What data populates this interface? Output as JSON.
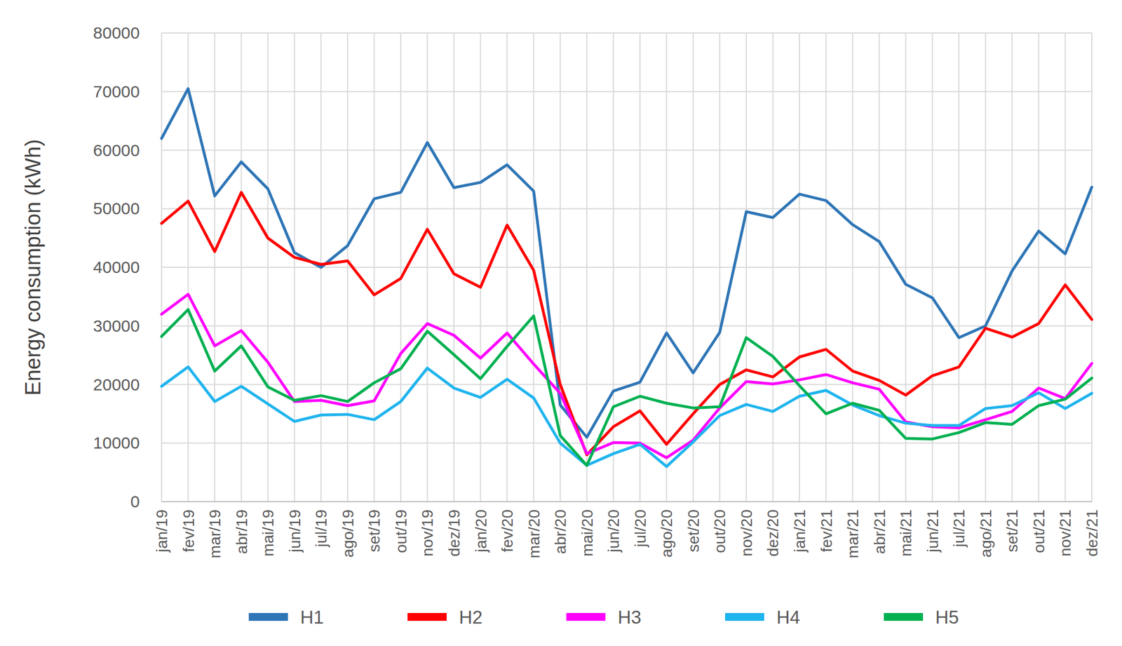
{
  "chart_data": {
    "type": "line",
    "y_label": "Energy consumption (kWh)",
    "categories": [
      "jan/19",
      "fev/19",
      "mar/19",
      "abr/19",
      "mai/19",
      "jun/19",
      "jul/19",
      "ago/19",
      "set/19",
      "out/19",
      "nov/19",
      "dez/19",
      "jan/20",
      "fev/20",
      "mar/20",
      "abr/20",
      "mai/20",
      "jun/20",
      "jul/20",
      "ago/20",
      "set/20",
      "out/20",
      "nov/20",
      "dez/20",
      "jan/21",
      "fev/21",
      "mar/21",
      "abr/21",
      "mai/21",
      "jun/21",
      "jul/21",
      "ago/21",
      "set/21",
      "out/21",
      "nov/21",
      "dez/21"
    ],
    "series": [
      {
        "name": "H1",
        "color": "#2e75b6",
        "values": [
          62000,
          70500,
          52200,
          58000,
          53400,
          42500,
          40000,
          43700,
          51700,
          52800,
          61300,
          53600,
          54500,
          57500,
          53000,
          16500,
          11000,
          18900,
          20400,
          28800,
          22000,
          28900,
          49500,
          48500,
          52500,
          51400,
          47300,
          44400,
          37100,
          34800,
          28000,
          30000,
          39400,
          46200,
          42300,
          53700
        ]
      },
      {
        "name": "H2",
        "color": "#ff0000",
        "values": [
          47500,
          51300,
          42700,
          52800,
          45000,
          41700,
          40500,
          41100,
          35300,
          38100,
          46500,
          38900,
          36600,
          47200,
          39500,
          20000,
          8000,
          12800,
          15500,
          9800,
          15000,
          20000,
          22500,
          21300,
          24700,
          26000,
          22300,
          20700,
          18200,
          21500,
          23000,
          29600,
          28100,
          30400,
          37000,
          31100
        ]
      },
      {
        "name": "H3",
        "color": "#ff00ff",
        "values": [
          32000,
          35400,
          26600,
          29200,
          23800,
          17100,
          17300,
          16400,
          17200,
          25300,
          30400,
          28400,
          24500,
          28800,
          23500,
          18500,
          8200,
          10100,
          10000,
          7500,
          10500,
          16000,
          20500,
          20100,
          20800,
          21700,
          20300,
          19200,
          13600,
          12800,
          12600,
          14000,
          15400,
          19400,
          17600,
          23600
        ]
      },
      {
        "name": "H4",
        "color": "#1fb4ee",
        "values": [
          19700,
          23000,
          17100,
          19700,
          16700,
          13700,
          14800,
          14900,
          14000,
          17100,
          22800,
          19400,
          17800,
          20900,
          17700,
          10000,
          6200,
          8200,
          9800,
          6000,
          10200,
          14700,
          16600,
          15400,
          18000,
          19000,
          16500,
          14700,
          13400,
          13000,
          13000,
          15900,
          16400,
          18600,
          15900,
          18500
        ]
      },
      {
        "name": "H5",
        "color": "#00b050",
        "values": [
          28200,
          32800,
          22300,
          26600,
          19600,
          17300,
          18100,
          17100,
          20300,
          22700,
          29100,
          25100,
          21000,
          26500,
          31700,
          11300,
          6200,
          16200,
          18000,
          16800,
          16000,
          16200,
          28000,
          24800,
          19800,
          15000,
          16800,
          15600,
          10800,
          10700,
          11800,
          13500,
          13200,
          16400,
          17500,
          21100
        ]
      }
    ],
    "ylim": [
      0,
      80000
    ],
    "yticks": [
      0,
      10000,
      20000,
      30000,
      40000,
      50000,
      60000,
      70000,
      80000
    ],
    "grid": true,
    "legend": "bottom"
  }
}
